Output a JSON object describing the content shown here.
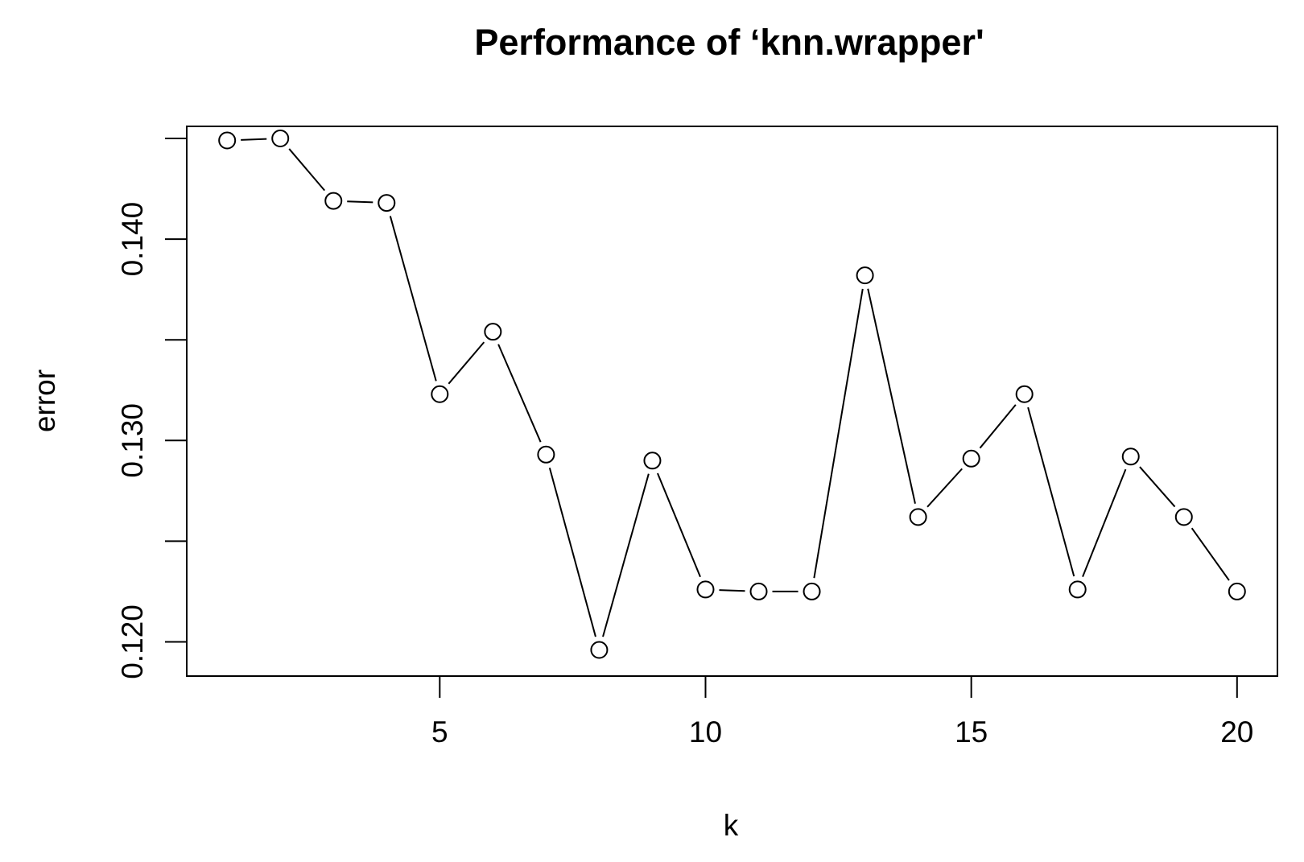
{
  "chart_data": {
    "type": "line",
    "title": "Performance of ‘knn.wrapper'",
    "xlabel": "k",
    "ylabel": "error",
    "x": [
      1,
      2,
      3,
      4,
      5,
      6,
      7,
      8,
      9,
      10,
      11,
      12,
      13,
      14,
      15,
      16,
      17,
      18,
      19,
      20
    ],
    "series": [
      {
        "values": [
          0.1449,
          0.145,
          0.1419,
          0.1418,
          0.1323,
          0.1354,
          0.1293,
          0.1196,
          0.129,
          0.1226,
          0.1225,
          0.1225,
          0.1382,
          0.1262,
          0.1291,
          0.1323,
          0.1226,
          0.1292,
          0.1262,
          0.1225
        ]
      }
    ],
    "xlim": [
      0.24,
      20.76
    ],
    "ylim": [
      0.1183,
      0.1456
    ],
    "xticks": [
      5,
      10,
      15,
      20
    ],
    "xtick_labels": [
      "5",
      "10",
      "15",
      "20"
    ],
    "yticks": [
      0.12,
      0.125,
      0.13,
      0.135,
      0.14,
      0.145
    ],
    "ytick_labels": [
      "0.120",
      "",
      "0.130",
      "",
      "0.140",
      ""
    ],
    "grid": false,
    "marker": "open-circle",
    "line_color": "#000000",
    "marker_fill": "#ffffff"
  }
}
